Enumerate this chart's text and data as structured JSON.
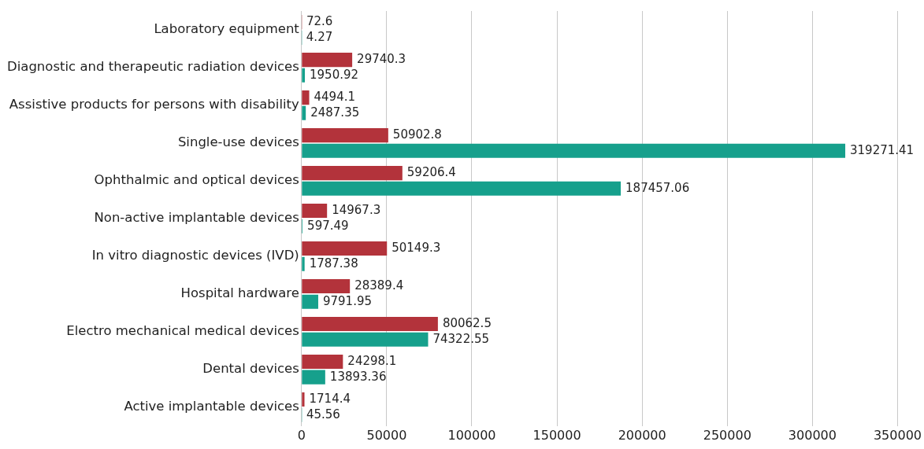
{
  "chart_data": {
    "type": "bar",
    "orientation": "horizontal",
    "categories": [
      "Laboratory equipment",
      "Diagnostic and therapeutic radiation devices",
      "Assistive products for persons with disability",
      "Single-use devices",
      "Ophthalmic and optical devices",
      "Non-active implantable devices",
      "In vitro diagnostic devices (IVD)",
      "Hospital hardware",
      "Electro mechanical medical devices",
      "Dental devices",
      "Active implantable devices"
    ],
    "series": [
      {
        "color": "#b3333b",
        "values": [
          72.6,
          29740.3,
          4494.1,
          50902.8,
          59206.4,
          14967.3,
          50149.3,
          28389.4,
          80062.5,
          24298.1,
          1714.4
        ]
      },
      {
        "color": "#16a08c",
        "values": [
          4.27,
          1950.92,
          2487.35,
          319271.41,
          187457.06,
          597.49,
          1787.38,
          9791.95,
          74322.55,
          13893.36,
          45.56
        ]
      }
    ],
    "xlim": [
      0,
      350000
    ],
    "xticks": [
      0,
      50000,
      100000,
      150000,
      200000,
      250000,
      300000,
      350000
    ],
    "grid": "x",
    "data_labels": true,
    "legend": false
  }
}
